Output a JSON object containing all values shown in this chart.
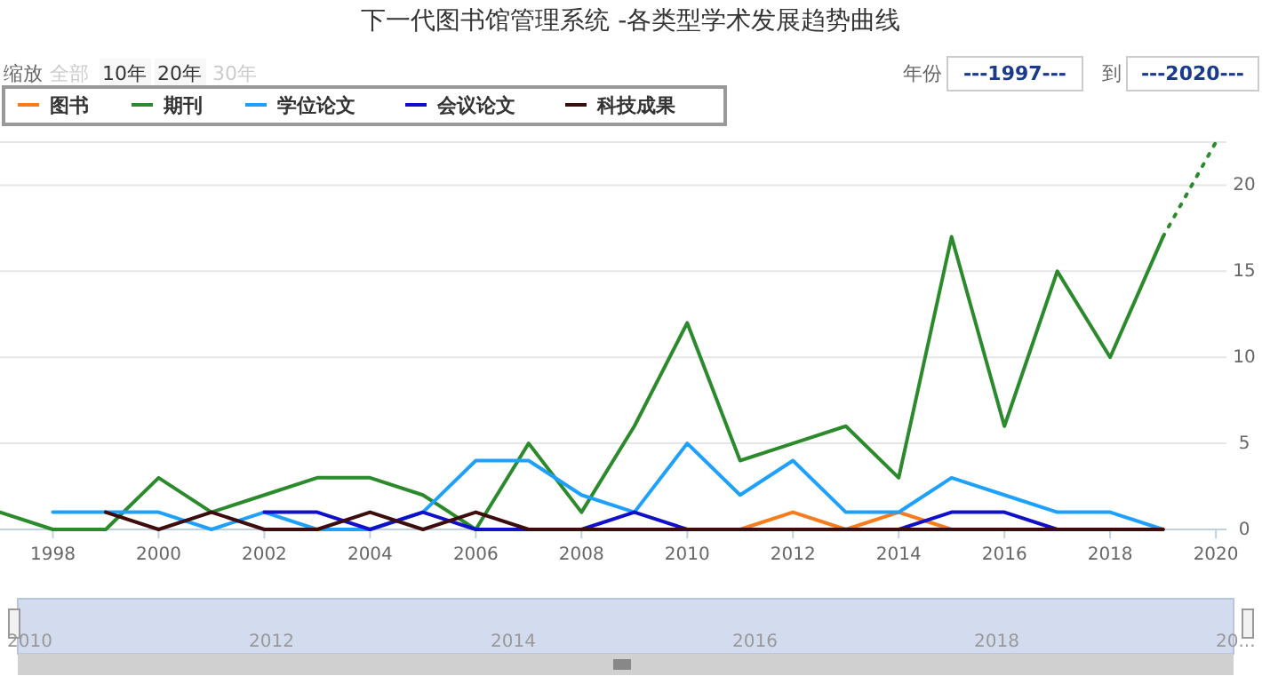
{
  "chart_data": {
    "type": "line",
    "title": "下一代图书馆管理系统 -各类型学术发展趋势曲线",
    "annotations": [
      "缩放",
      "全部",
      "10年",
      "20年",
      "30年",
      "年份",
      "---1997---",
      "到",
      "---2020---",
      "2010",
      "2012",
      "2014",
      "2016",
      "2018",
      "20..."
    ],
    "xlim": [
      1997,
      2020.2
    ],
    "xticks": [
      1998,
      2000,
      2002,
      2004,
      2006,
      2008,
      2010,
      2012,
      2014,
      2016,
      2018,
      2020
    ],
    "ylim": [
      0,
      22.5
    ],
    "yticks": [
      0,
      5,
      10,
      15,
      20
    ],
    "grid": "y",
    "legend": "top left",
    "marker": "none",
    "series": [
      {
        "name": "图书",
        "color": "#f97b1b",
        "x": [
          2011,
          2012,
          2013,
          2014,
          2015
        ],
        "values": [
          0,
          1,
          0,
          1,
          0
        ]
      },
      {
        "name": "期刊",
        "color": "#2b8a2b",
        "x": [
          1997,
          1998,
          1999,
          2000,
          2001,
          2002,
          2003,
          2004,
          2005,
          2006,
          2007,
          2008,
          2009,
          2010,
          2011,
          2012,
          2013,
          2014,
          2015,
          2016,
          2017,
          2018,
          2019
        ],
        "values": [
          1,
          0,
          0,
          3,
          1,
          2,
          3,
          3,
          2,
          0,
          5,
          1,
          6,
          12,
          4,
          5,
          6,
          3,
          17,
          6,
          15,
          10,
          17
        ]
      },
      {
        "color": "#2b8a2b",
        "line_style": "dotted",
        "x": [
          2019,
          2020
        ],
        "values": [
          17,
          22.5
        ]
      },
      {
        "name": "学位论文",
        "color": "#1ea0ff",
        "x": [
          1998,
          1999,
          2000,
          2001,
          2002,
          2003,
          2004,
          2005,
          2006,
          2007,
          2008,
          2009,
          2010,
          2011,
          2012,
          2013,
          2014,
          2015,
          2016,
          2017,
          2018,
          2019
        ],
        "values": [
          1,
          1,
          1,
          0,
          1,
          0,
          0,
          1,
          4,
          4,
          2,
          1,
          5,
          2,
          4,
          1,
          1,
          3,
          2,
          1,
          1,
          0
        ]
      },
      {
        "name": "会议论文",
        "color": "#1010cc",
        "x": [
          2002,
          2003,
          2004,
          2005,
          2006,
          2007,
          2008,
          2009,
          2010,
          2011,
          2012,
          2013,
          2014,
          2015,
          2016,
          2017,
          2018,
          2019
        ],
        "values": [
          1,
          1,
          0,
          1,
          0,
          0,
          0,
          1,
          0,
          0,
          0,
          0,
          0,
          1,
          1,
          0,
          0,
          0
        ]
      },
      {
        "name": "科技成果",
        "color": "#3d0c0c",
        "x": [
          1999,
          2000,
          2001,
          2002,
          2003,
          2004,
          2005,
          2006,
          2007,
          2008,
          2009,
          2010,
          2011,
          2012,
          2013,
          2014,
          2015,
          2016,
          2017,
          2018,
          2019
        ],
        "values": [
          1,
          0,
          1,
          0,
          0,
          1,
          0,
          1,
          0,
          0,
          0,
          0,
          0,
          0,
          0,
          0,
          0,
          0,
          0,
          0,
          0
        ]
      }
    ]
  }
}
